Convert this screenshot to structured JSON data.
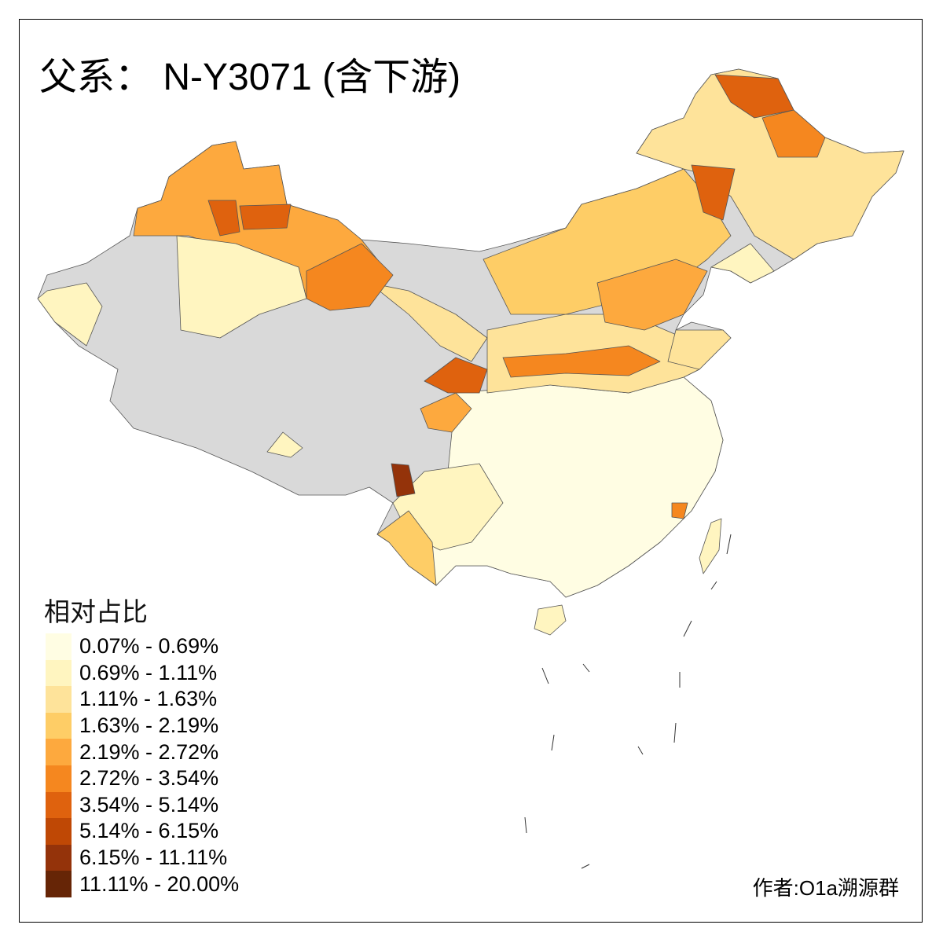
{
  "title": "父系： N-Y3071 (含下游)",
  "legend": {
    "title": "相对占比",
    "items": [
      {
        "label": "0.07% - 0.69%",
        "color": "#FFFDE3"
      },
      {
        "label": "0.69% - 1.11%",
        "color": "#FFF5C0"
      },
      {
        "label": "1.11% - 1.63%",
        "color": "#FEE39A"
      },
      {
        "label": "1.63% - 2.19%",
        "color": "#FECD66"
      },
      {
        "label": "2.19% - 2.72%",
        "color": "#FDA93E"
      },
      {
        "label": "2.72% - 3.54%",
        "color": "#F5871F"
      },
      {
        "label": "3.54% - 5.14%",
        "color": "#DF620E"
      },
      {
        "label": "5.14% - 6.15%",
        "color": "#BF4805"
      },
      {
        "label": "6.15% - 11.11%",
        "color": "#94330A"
      },
      {
        "label": "11.11% - 20.00%",
        "color": "#662506"
      }
    ],
    "no_data_color": "#D9D9D9"
  },
  "author": "作者:O1a溯源群"
}
